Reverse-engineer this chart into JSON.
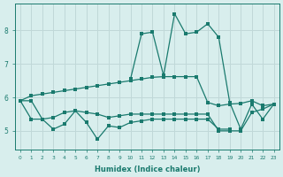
{
  "x": [
    0,
    1,
    2,
    3,
    4,
    5,
    6,
    7,
    8,
    9,
    10,
    11,
    12,
    13,
    14,
    15,
    16,
    17,
    18,
    19,
    20,
    21,
    22,
    23
  ],
  "line1": [
    5.9,
    6.05,
    6.1,
    6.15,
    6.2,
    6.25,
    6.3,
    6.35,
    6.4,
    6.45,
    6.5,
    6.55,
    6.6,
    6.62,
    6.62,
    6.62,
    6.62,
    5.85,
    5.75,
    5.8,
    5.82,
    5.9,
    5.75,
    5.8
  ],
  "line2": [
    5.9,
    5.9,
    5.35,
    5.4,
    5.55,
    5.6,
    5.55,
    5.5,
    5.4,
    5.45,
    5.5,
    5.5,
    5.5,
    5.5,
    5.5,
    5.5,
    5.5,
    5.5,
    5.0,
    5.0,
    5.0,
    5.55,
    5.65,
    5.8
  ],
  "line3_x": [
    0,
    1,
    2,
    3,
    4,
    5,
    6,
    7,
    8,
    9,
    10,
    11,
    12,
    13,
    14,
    15,
    16,
    17,
    18,
    19
  ],
  "line3": [
    5.9,
    5.35,
    5.35,
    5.05,
    5.2,
    5.6,
    5.25,
    4.75,
    5.15,
    5.1,
    5.25,
    5.3,
    5.35,
    5.35,
    5.35,
    5.35,
    5.35,
    5.35,
    5.05,
    5.05
  ],
  "line4_x": [
    10,
    11,
    12,
    13,
    14,
    15,
    16,
    17,
    18,
    19,
    20,
    21,
    22,
    23
  ],
  "line4": [
    6.55,
    7.9,
    7.95,
    6.65,
    8.5,
    7.9,
    7.95,
    8.2,
    7.8,
    5.85,
    5.05,
    5.8,
    5.35,
    5.8
  ],
  "xlabel": "Humidex (Indice chaleur)",
  "xlim": [
    -0.5,
    23.5
  ],
  "ylim": [
    4.45,
    8.8
  ],
  "yticks": [
    5,
    6,
    7,
    8
  ],
  "xtick_labels": [
    "0",
    "1",
    "2",
    "3",
    "4",
    "5",
    "6",
    "7",
    "8",
    "9",
    "10",
    "11",
    "12",
    "13",
    "14",
    "15",
    "16",
    "17",
    "18",
    "19",
    "20",
    "21",
    "22",
    "23"
  ],
  "line_color": "#1a7a6e",
  "bg_color": "#d8eeed",
  "grid_color": "#c0d8d8"
}
